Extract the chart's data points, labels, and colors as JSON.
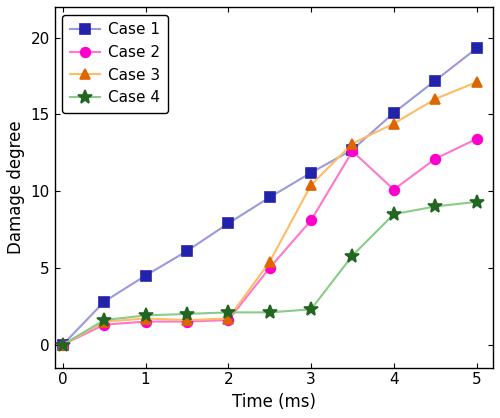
{
  "cases": {
    "Case 1": {
      "x": [
        0,
        0.5,
        1.0,
        1.5,
        2.0,
        2.5,
        3.0,
        3.5,
        4.0,
        4.5,
        5.0
      ],
      "y": [
        0,
        2.8,
        4.5,
        6.1,
        7.9,
        9.6,
        11.2,
        12.7,
        15.1,
        17.2,
        19.3
      ],
      "line_color": "#9999dd",
      "marker": "s",
      "mfc": "#2222aa",
      "mec": "#2222aa"
    },
    "Case 2": {
      "x": [
        0,
        0.5,
        1.0,
        1.5,
        2.0,
        2.5,
        3.0,
        3.5,
        4.0,
        4.5,
        5.0
      ],
      "y": [
        0,
        1.3,
        1.5,
        1.5,
        1.6,
        5.0,
        8.1,
        12.6,
        10.1,
        12.1,
        13.4
      ],
      "line_color": "#ff77cc",
      "marker": "o",
      "mfc": "#ff00cc",
      "mec": "#ff00cc"
    },
    "Case 3": {
      "x": [
        0,
        0.5,
        1.0,
        1.5,
        2.0,
        2.5,
        3.0,
        3.5,
        4.0,
        4.5,
        5.0
      ],
      "y": [
        0,
        1.5,
        1.7,
        1.6,
        1.7,
        5.4,
        10.4,
        13.1,
        14.4,
        16.0,
        17.1
      ],
      "line_color": "#ffbb66",
      "marker": "^",
      "mfc": "#dd6600",
      "mec": "#dd6600"
    },
    "Case 4": {
      "x": [
        0,
        0.5,
        1.0,
        1.5,
        2.0,
        2.5,
        3.0,
        3.5,
        4.0,
        4.5,
        5.0
      ],
      "y": [
        0,
        1.6,
        1.9,
        2.0,
        2.1,
        2.1,
        2.3,
        5.8,
        8.5,
        9.0,
        9.3
      ],
      "line_color": "#88cc88",
      "marker": "*",
      "mfc": "#226622",
      "mec": "#226622"
    }
  },
  "xlabel": "Time (ms)",
  "ylabel": "Damage degree",
  "xlim": [
    -0.1,
    5.2
  ],
  "ylim": [
    -1.5,
    22
  ],
  "xticks": [
    0,
    1,
    2,
    3,
    4,
    5
  ],
  "yticks": [
    0,
    5,
    10,
    15,
    20
  ],
  "legend_order": [
    "Case 1",
    "Case 2",
    "Case 3",
    "Case 4"
  ],
  "background_color": "#ffffff",
  "linewidth": 1.5,
  "markersize": 7,
  "star_markersize": 10
}
